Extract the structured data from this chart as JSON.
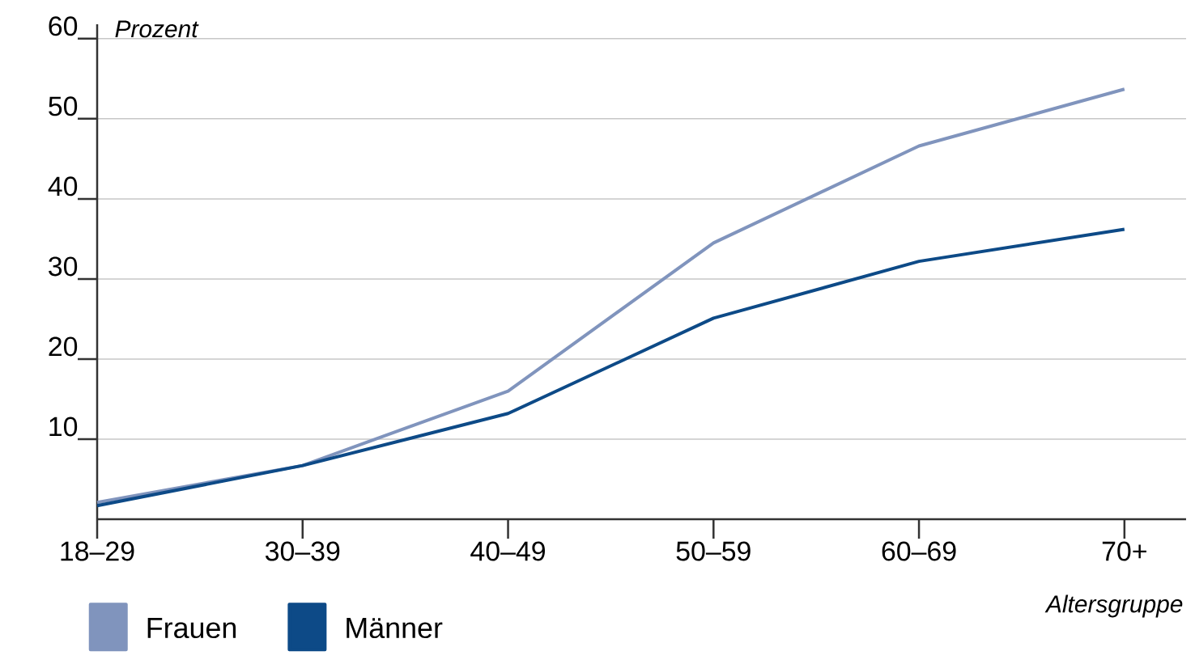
{
  "chart_data": {
    "type": "line",
    "xlabel": "Altersgruppe",
    "ylabel": "Prozent",
    "categories": [
      "18–29",
      "30–39",
      "40–49",
      "50–59",
      "60–69",
      "70+"
    ],
    "series": [
      {
        "name": "Frauen",
        "color": "#8094bd",
        "values": [
          2.1,
          6.7,
          16.0,
          34.5,
          46.6,
          53.7
        ]
      },
      {
        "name": "Männer",
        "color": "#0d4a87",
        "values": [
          1.7,
          6.7,
          13.2,
          25.1,
          32.2,
          36.2
        ]
      }
    ],
    "ylim": [
      0,
      61.8
    ],
    "yticks": [
      10,
      20,
      30,
      40,
      50,
      60
    ],
    "grid": "y",
    "legend": "bottom left"
  }
}
